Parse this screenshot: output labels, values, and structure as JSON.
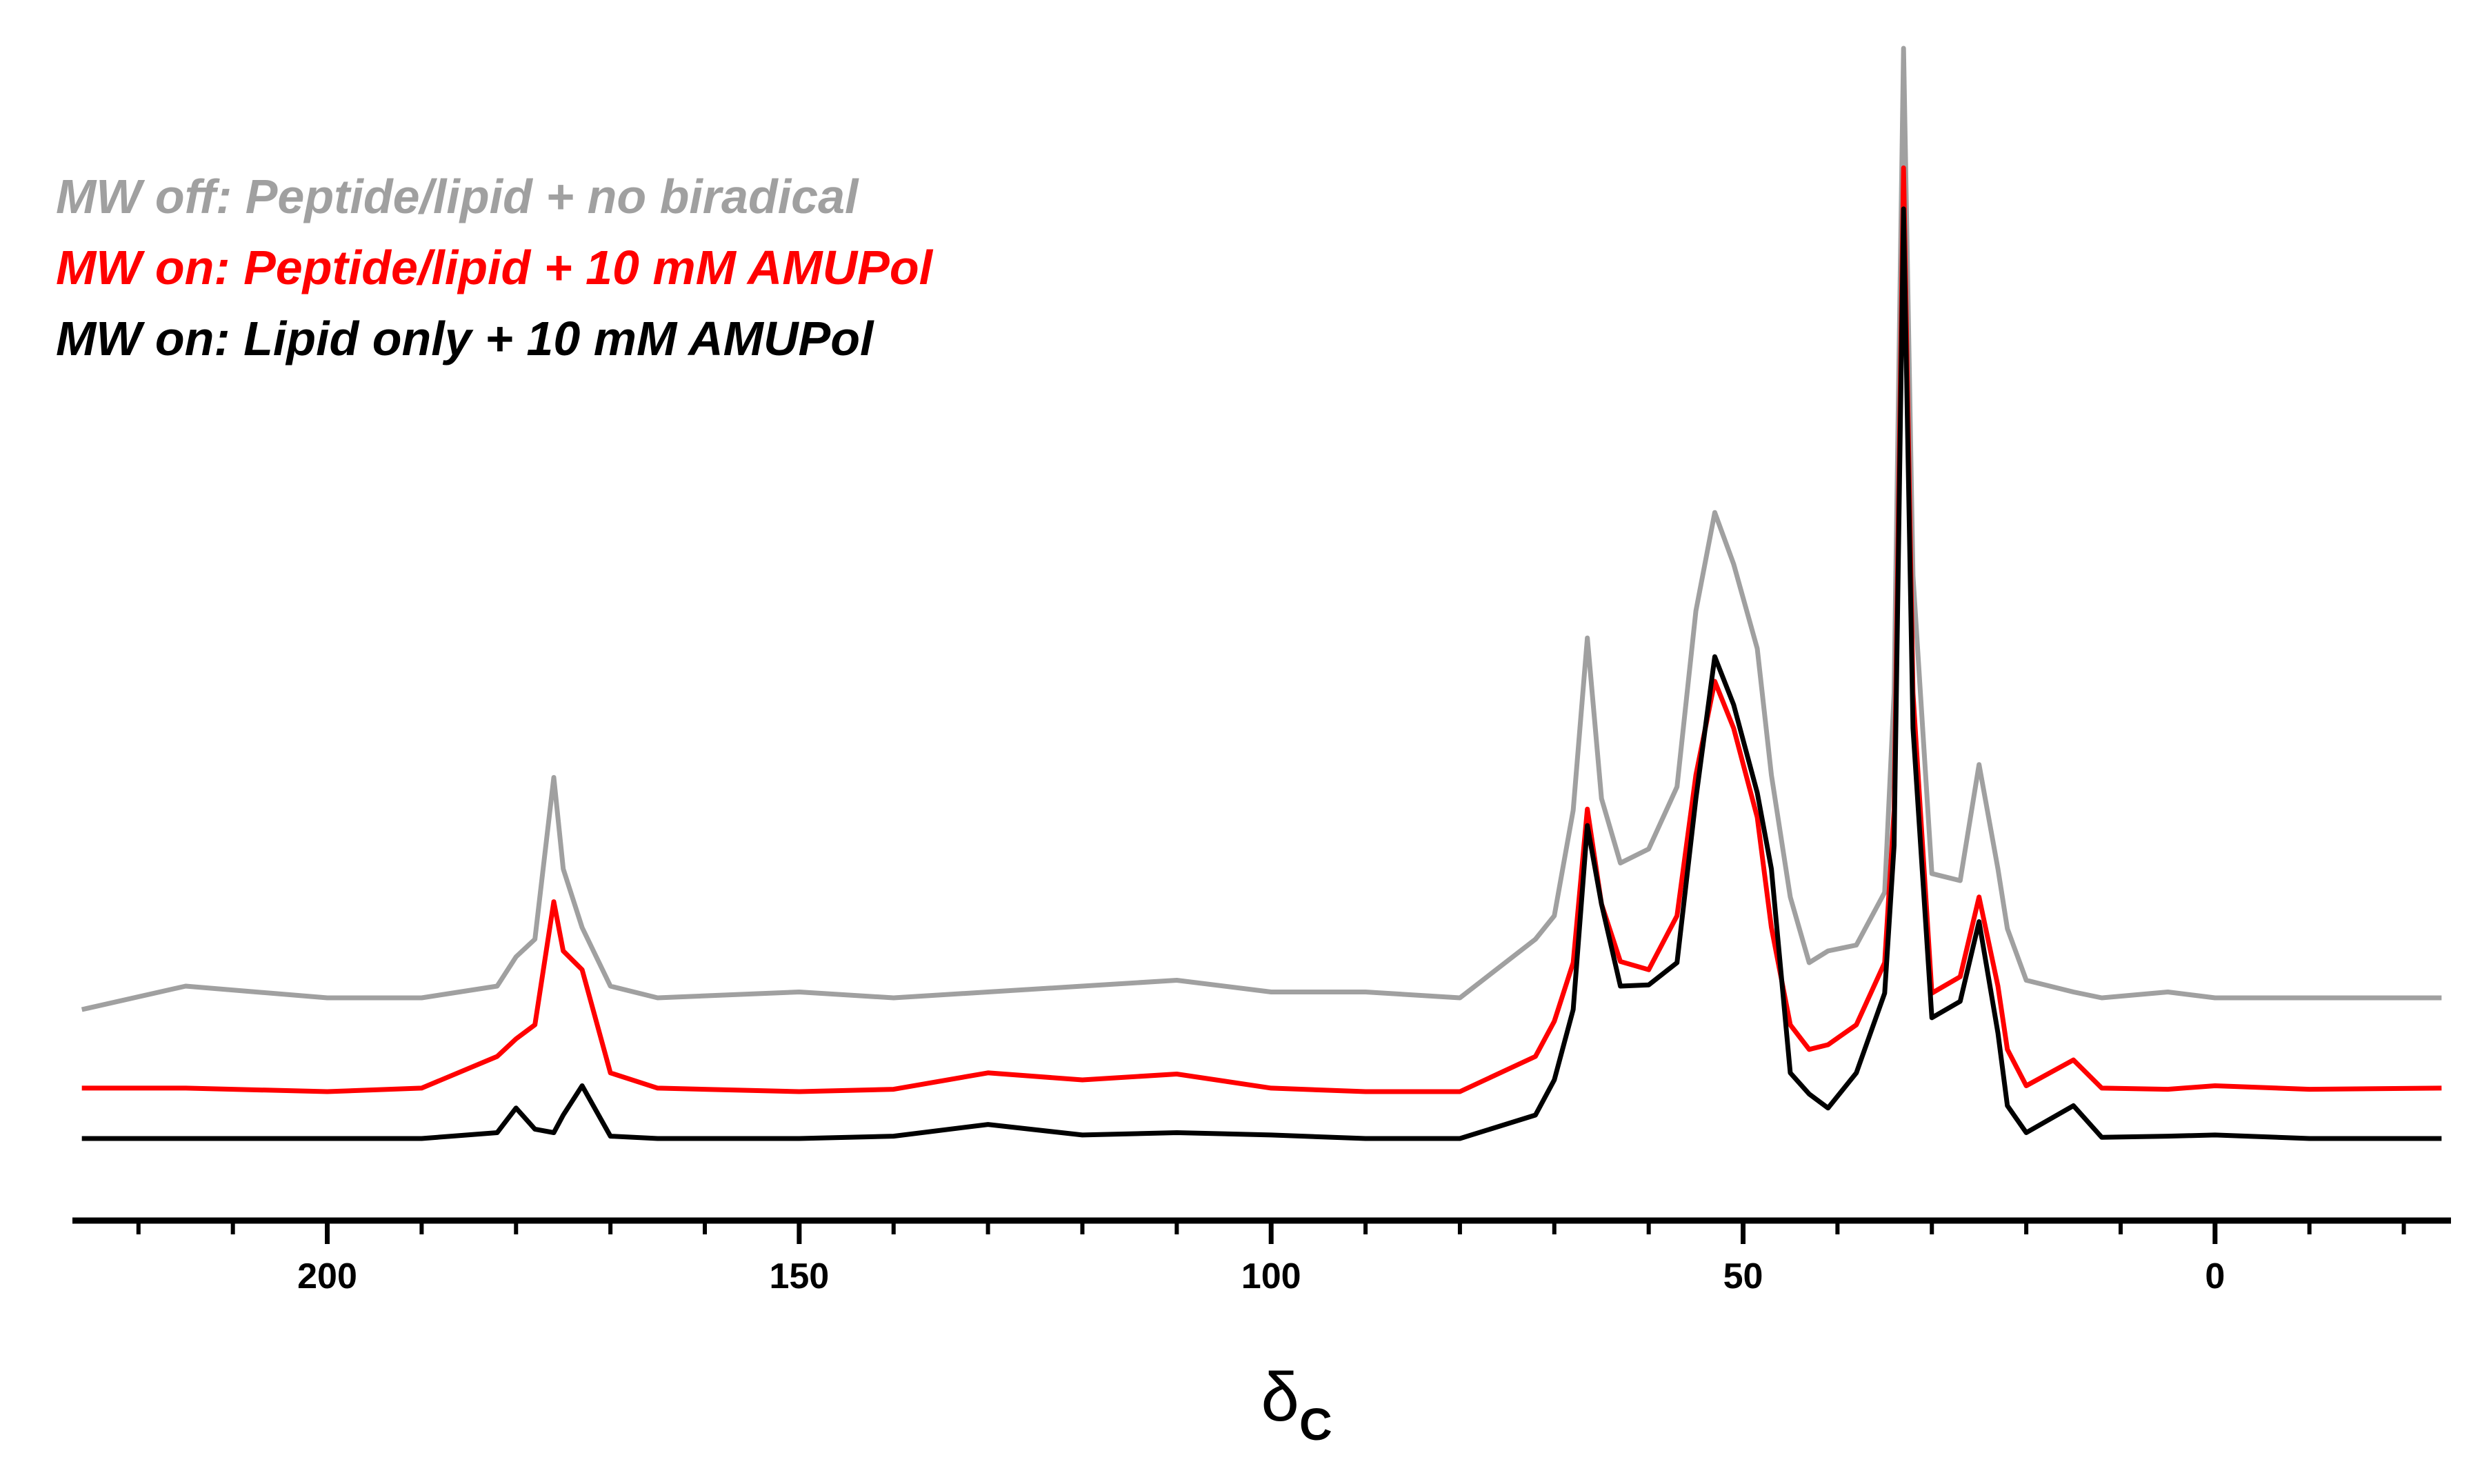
{
  "chart_data": {
    "type": "line",
    "xlabel": "δ",
    "xlabel_sub": "C",
    "xlim": [
      227,
      -25
    ],
    "ylim": [
      0,
      100
    ],
    "xticks": [
      200,
      150,
      100,
      50,
      0
    ],
    "xminorticks": [
      220,
      210,
      190,
      180,
      170,
      160,
      140,
      130,
      120,
      110,
      90,
      80,
      70,
      60,
      40,
      30,
      20,
      10,
      -10,
      -20
    ],
    "x": [
      226,
      215,
      200,
      190,
      182,
      180,
      178,
      176,
      175,
      173,
      170,
      165,
      150,
      140,
      130,
      120,
      110,
      100,
      90,
      80,
      72,
      70,
      68,
      66.5,
      65,
      63,
      60,
      57,
      55,
      53,
      51,
      48.5,
      47,
      45,
      43,
      41,
      38,
      35,
      34,
      33,
      32,
      30,
      27,
      25,
      23,
      22,
      20,
      15,
      12,
      5,
      0,
      -10,
      -24
    ],
    "series": [
      {
        "name": "MW off: Peptide/lipid + no biradical",
        "color": "#a0a0a0",
        "values": [
          18,
          20,
          19,
          19,
          20,
          22.5,
          24,
          37.8,
          30,
          25,
          20,
          19,
          19.5,
          19,
          19.5,
          20,
          20.5,
          19.5,
          19.5,
          19,
          24,
          26,
          35,
          49.7,
          36,
          30.5,
          31.7,
          37,
          52,
          60.4,
          56,
          48.8,
          38,
          27.6,
          22,
          23,
          23.5,
          28,
          45,
          100,
          55,
          29.6,
          29,
          38.9,
          30,
          24.9,
          20.5,
          19.5,
          19,
          19.5,
          19,
          19,
          19
        ]
      },
      {
        "name": "MW on: Peptide/lipid + 10 mM AMUPol",
        "color": "#ff0000",
        "values": [
          11.3,
          11.3,
          11,
          11.3,
          14,
          15.5,
          16.7,
          27.2,
          23,
          21.4,
          12.6,
          11.3,
          11,
          11.2,
          12.6,
          12,
          12.5,
          11.3,
          11,
          11,
          14,
          17,
          22,
          35.1,
          27,
          22.1,
          21.4,
          26,
          38,
          46,
          42,
          34.4,
          25,
          16.7,
          14.6,
          15,
          16.7,
          22,
          35,
          89.8,
          45,
          19.4,
          20.8,
          27.6,
          20,
          14.6,
          11.5,
          13.7,
          11.3,
          11.2,
          11.5,
          11.2,
          11.3
        ]
      },
      {
        "name": "MW on: Lipid only + 10 mM AMUPol",
        "color": "#000000",
        "values": [
          7,
          7,
          7,
          7,
          7.5,
          9.6,
          7.8,
          7.5,
          9,
          11.5,
          7.2,
          7,
          7,
          7.2,
          8.2,
          7.3,
          7.5,
          7.3,
          7,
          7,
          9,
          12,
          18,
          33.7,
          27,
          20,
          20.1,
          22,
          36,
          48.1,
          44,
          36.5,
          30,
          12.6,
          10.8,
          9.6,
          12.6,
          19.4,
          32,
          86.3,
          42,
          17.3,
          18.7,
          25.5,
          16,
          9.8,
          7.5,
          9.8,
          7.1,
          7.2,
          7.3,
          7,
          7
        ]
      }
    ]
  }
}
